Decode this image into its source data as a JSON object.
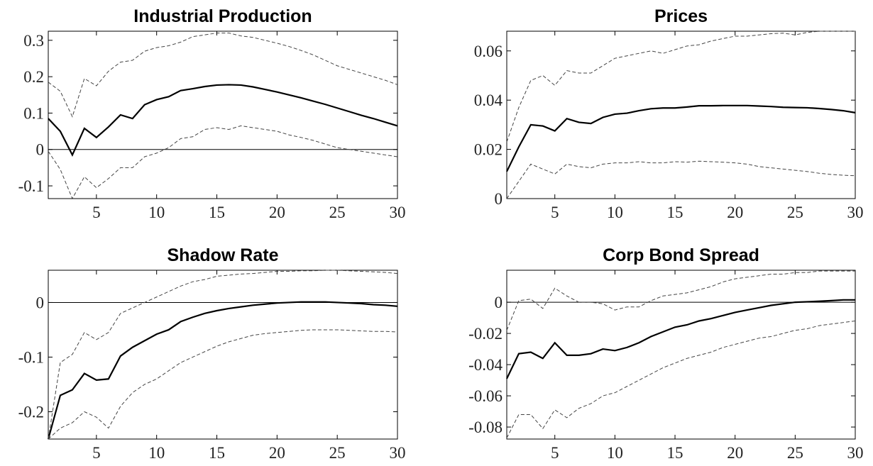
{
  "chart_data": [
    {
      "type": "line",
      "title": "Industrial Production",
      "x": [
        1,
        2,
        3,
        4,
        5,
        6,
        7,
        8,
        9,
        10,
        11,
        12,
        13,
        14,
        15,
        16,
        17,
        18,
        19,
        20,
        21,
        22,
        23,
        24,
        25,
        26,
        27,
        28,
        29,
        30
      ],
      "xlim": [
        1,
        30
      ],
      "xticks": [
        5,
        10,
        15,
        20,
        25,
        30
      ],
      "ylim": [
        -0.135,
        0.325
      ],
      "yticks": [
        -0.1,
        0,
        0.1,
        0.2,
        0.3
      ],
      "zero_line": true,
      "series": [
        {
          "color": "#000000",
          "dashed": false,
          "values": [
            0.085,
            0.05,
            -0.015,
            0.058,
            0.033,
            0.062,
            0.095,
            0.085,
            0.123,
            0.137,
            0.145,
            0.162,
            0.167,
            0.173,
            0.177,
            0.178,
            0.177,
            0.172,
            0.165,
            0.158,
            0.15,
            0.142,
            0.133,
            0.124,
            0.114,
            0.104,
            0.094,
            0.085,
            0.075,
            0.065
          ]
        },
        {
          "color": "#444444",
          "dashed": true,
          "values": [
            0.185,
            0.16,
            0.09,
            0.195,
            0.175,
            0.215,
            0.24,
            0.245,
            0.27,
            0.28,
            0.285,
            0.295,
            0.31,
            0.315,
            0.32,
            0.32,
            0.312,
            0.308,
            0.3,
            0.292,
            0.283,
            0.272,
            0.26,
            0.245,
            0.23,
            0.22,
            0.21,
            0.2,
            0.19,
            0.178
          ]
        },
        {
          "color": "#444444",
          "dashed": true,
          "values": [
            -0.005,
            -0.055,
            -0.135,
            -0.075,
            -0.105,
            -0.08,
            -0.05,
            -0.05,
            -0.02,
            -0.01,
            0.005,
            0.03,
            0.035,
            0.055,
            0.06,
            0.055,
            0.065,
            0.06,
            0.055,
            0.05,
            0.04,
            0.033,
            0.025,
            0.015,
            0.005,
            0.0,
            -0.005,
            -0.01,
            -0.015,
            -0.02
          ]
        }
      ]
    },
    {
      "type": "line",
      "title": "Prices",
      "x": [
        1,
        2,
        3,
        4,
        5,
        6,
        7,
        8,
        9,
        10,
        11,
        12,
        13,
        14,
        15,
        16,
        17,
        18,
        19,
        20,
        21,
        22,
        23,
        24,
        25,
        26,
        27,
        28,
        29,
        30
      ],
      "xlim": [
        1,
        30
      ],
      "xticks": [
        5,
        10,
        15,
        20,
        25,
        30
      ],
      "ylim": [
        0,
        0.068
      ],
      "yticks": [
        0,
        0.02,
        0.04,
        0.06
      ],
      "zero_line": false,
      "series": [
        {
          "color": "#000000",
          "dashed": false,
          "values": [
            0.011,
            0.021,
            0.03,
            0.0295,
            0.0275,
            0.0325,
            0.031,
            0.0305,
            0.033,
            0.0343,
            0.0347,
            0.0357,
            0.0365,
            0.0368,
            0.0368,
            0.0372,
            0.0377,
            0.0377,
            0.0378,
            0.0378,
            0.0378,
            0.0376,
            0.0374,
            0.0371,
            0.037,
            0.0369,
            0.0366,
            0.0362,
            0.0357,
            0.0349
          ]
        },
        {
          "color": "#444444",
          "dashed": true,
          "values": [
            0.023,
            0.037,
            0.048,
            0.05,
            0.046,
            0.052,
            0.051,
            0.051,
            0.054,
            0.057,
            0.058,
            0.059,
            0.06,
            0.059,
            0.0605,
            0.062,
            0.0625,
            0.064,
            0.065,
            0.066,
            0.066,
            0.0665,
            0.067,
            0.0672,
            0.0665,
            0.0675,
            0.068,
            0.068,
            0.068,
            0.068
          ]
        },
        {
          "color": "#444444",
          "dashed": true,
          "values": [
            0.0,
            0.007,
            0.014,
            0.012,
            0.01,
            0.014,
            0.013,
            0.0125,
            0.014,
            0.0145,
            0.0145,
            0.015,
            0.0145,
            0.0145,
            0.015,
            0.0148,
            0.0152,
            0.015,
            0.0148,
            0.0145,
            0.014,
            0.013,
            0.0125,
            0.012,
            0.0115,
            0.011,
            0.0103,
            0.0098,
            0.0095,
            0.0093
          ]
        }
      ]
    },
    {
      "type": "line",
      "title": "Shadow Rate",
      "x": [
        1,
        2,
        3,
        4,
        5,
        6,
        7,
        8,
        9,
        10,
        11,
        12,
        13,
        14,
        15,
        16,
        17,
        18,
        19,
        20,
        21,
        22,
        23,
        24,
        25,
        26,
        27,
        28,
        29,
        30
      ],
      "xlim": [
        1,
        30
      ],
      "xticks": [
        5,
        10,
        15,
        20,
        25,
        30
      ],
      "ylim": [
        -0.25,
        0.059
      ],
      "yticks": [
        -0.2,
        -0.1,
        0
      ],
      "zero_line": true,
      "series": [
        {
          "color": "#000000",
          "dashed": false,
          "values": [
            -0.25,
            -0.17,
            -0.16,
            -0.13,
            -0.142,
            -0.14,
            -0.098,
            -0.082,
            -0.07,
            -0.058,
            -0.05,
            -0.035,
            -0.027,
            -0.02,
            -0.015,
            -0.011,
            -0.008,
            -0.005,
            -0.003,
            -0.001,
            0.0,
            0.001,
            0.001,
            0.001,
            0.0,
            -0.001,
            -0.002,
            -0.004,
            -0.005,
            -0.007
          ]
        },
        {
          "color": "#444444",
          "dashed": true,
          "values": [
            -0.25,
            -0.11,
            -0.095,
            -0.055,
            -0.068,
            -0.055,
            -0.02,
            -0.01,
            0.0,
            0.01,
            0.02,
            0.03,
            0.038,
            0.042,
            0.048,
            0.05,
            0.052,
            0.053,
            0.055,
            0.057,
            0.057,
            0.058,
            0.058,
            0.059,
            0.059,
            0.058,
            0.057,
            0.056,
            0.055,
            0.053
          ]
        },
        {
          "color": "#444444",
          "dashed": true,
          "values": [
            -0.25,
            -0.23,
            -0.22,
            -0.2,
            -0.21,
            -0.23,
            -0.19,
            -0.165,
            -0.15,
            -0.14,
            -0.125,
            -0.11,
            -0.1,
            -0.09,
            -0.08,
            -0.072,
            -0.066,
            -0.06,
            -0.057,
            -0.055,
            -0.053,
            -0.051,
            -0.05,
            -0.05,
            -0.05,
            -0.051,
            -0.052,
            -0.053,
            -0.053,
            -0.054
          ]
        }
      ]
    },
    {
      "type": "line",
      "title": "Corp Bond Spread",
      "x": [
        1,
        2,
        3,
        4,
        5,
        6,
        7,
        8,
        9,
        10,
        11,
        12,
        13,
        14,
        15,
        16,
        17,
        18,
        19,
        20,
        21,
        22,
        23,
        24,
        25,
        26,
        27,
        28,
        29,
        30
      ],
      "xlim": [
        1,
        30
      ],
      "xticks": [
        5,
        10,
        15,
        20,
        25,
        30
      ],
      "ylim": [
        -0.0877,
        0.0205
      ],
      "yticks": [
        -0.08,
        -0.06,
        -0.04,
        -0.02,
        0
      ],
      "zero_line": true,
      "series": [
        {
          "color": "#000000",
          "dashed": false,
          "values": [
            -0.049,
            -0.033,
            -0.032,
            -0.036,
            -0.026,
            -0.034,
            -0.034,
            -0.033,
            -0.03,
            -0.031,
            -0.029,
            -0.026,
            -0.022,
            -0.019,
            -0.016,
            -0.0145,
            -0.012,
            -0.0105,
            -0.0085,
            -0.0065,
            -0.005,
            -0.0035,
            -0.002,
            -0.001,
            0.0,
            0.0003,
            0.0006,
            0.001,
            0.0015,
            0.0015
          ]
        },
        {
          "color": "#444444",
          "dashed": true,
          "values": [
            -0.018,
            0.001,
            0.002,
            -0.004,
            0.009,
            0.004,
            0.0,
            0.0,
            -0.001,
            -0.005,
            -0.003,
            -0.003,
            0.001,
            0.004,
            0.005,
            0.006,
            0.008,
            0.01,
            0.013,
            0.015,
            0.016,
            0.017,
            0.018,
            0.018,
            0.019,
            0.019,
            0.02,
            0.02,
            0.02,
            0.02
          ]
        },
        {
          "color": "#444444",
          "dashed": true,
          "values": [
            -0.087,
            -0.072,
            -0.072,
            -0.081,
            -0.069,
            -0.074,
            -0.068,
            -0.065,
            -0.06,
            -0.058,
            -0.054,
            -0.05,
            -0.046,
            -0.042,
            -0.039,
            -0.036,
            -0.034,
            -0.032,
            -0.029,
            -0.027,
            -0.025,
            -0.023,
            -0.022,
            -0.02,
            -0.018,
            -0.017,
            -0.015,
            -0.014,
            -0.013,
            -0.012
          ]
        }
      ]
    }
  ]
}
